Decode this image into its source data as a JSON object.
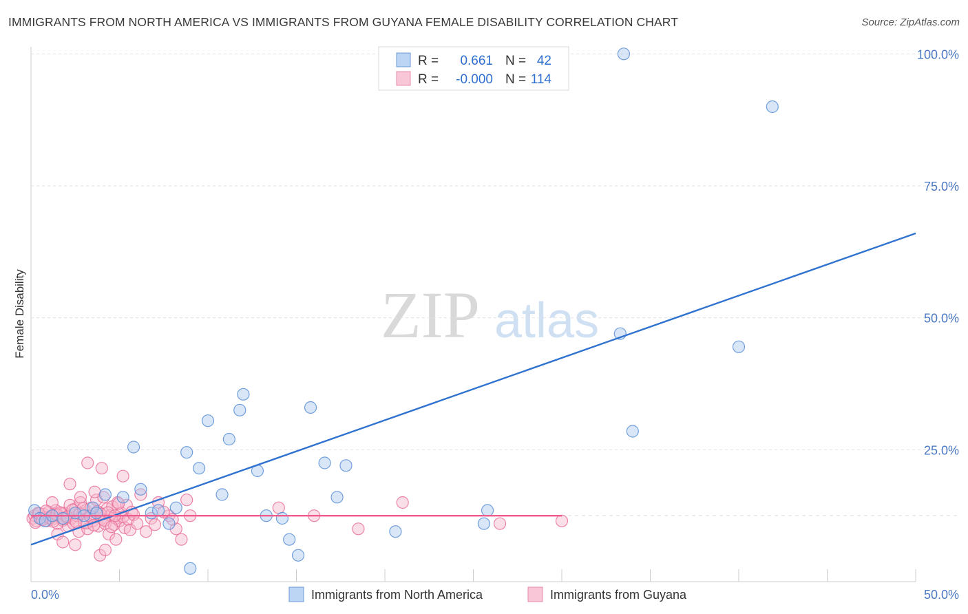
{
  "header": {
    "title": "IMMIGRANTS FROM NORTH AMERICA VS IMMIGRANTS FROM GUYANA FEMALE DISABILITY CORRELATION CHART",
    "source": "Source: ZipAtlas.com"
  },
  "watermark": {
    "zip": "ZIP",
    "atlas": "atlas"
  },
  "legend": {
    "r_label": "R =",
    "n_label": "N =",
    "blue_r": "0.661",
    "blue_n": "42",
    "pink_r": "-0.000",
    "pink_n": "114"
  },
  "colors": {
    "blue_fill": "#a9c8f0",
    "blue_stroke": "#5b8fd6",
    "blue_line": "#2f72d0",
    "pink_fill": "#f6b8cb",
    "pink_stroke": "#e8709a",
    "pink_line": "#ee5b8c",
    "tick_text": "#4a78c2"
  },
  "chart_data": {
    "type": "scatter",
    "title": "IMMIGRANTS FROM NORTH AMERICA VS IMMIGRANTS FROM GUYANA FEMALE DISABILITY CORRELATION CHART",
    "xlabel": "",
    "ylabel": "Female Disability",
    "xlim": [
      0,
      50
    ],
    "ylim": [
      0,
      105
    ],
    "x_tick_labels": [
      "0.0%",
      "50.0%"
    ],
    "y_ticks": [
      25,
      50,
      75,
      100
    ],
    "y_tick_labels": [
      "25.0%",
      "50.0%",
      "75.0%",
      "100.0%"
    ],
    "reference_line_y": 12.5,
    "series": [
      {
        "name": "Immigrants from North America",
        "color": "blue",
        "trend": {
          "x": [
            0,
            50
          ],
          "y": [
            7,
            66
          ]
        },
        "points": [
          [
            0.2,
            13.5
          ],
          [
            0.5,
            12
          ],
          [
            0.8,
            11.5
          ],
          [
            1.2,
            12.5
          ],
          [
            1.8,
            12
          ],
          [
            2.5,
            13
          ],
          [
            3.0,
            12.5
          ],
          [
            3.5,
            14
          ],
          [
            4.2,
            16.5
          ],
          [
            5.2,
            16
          ],
          [
            5.8,
            25.5
          ],
          [
            6.2,
            17.5
          ],
          [
            6.8,
            13
          ],
          [
            7.2,
            13.5
          ],
          [
            7.8,
            11
          ],
          [
            8.2,
            14
          ],
          [
            8.8,
            24.5
          ],
          [
            9.0,
            2.5
          ],
          [
            9.5,
            21.5
          ],
          [
            10.0,
            30.5
          ],
          [
            10.8,
            16.5
          ],
          [
            11.2,
            27
          ],
          [
            11.8,
            32.5
          ],
          [
            12.0,
            35.5
          ],
          [
            12.8,
            21
          ],
          [
            13.3,
            12.5
          ],
          [
            14.2,
            12
          ],
          [
            14.6,
            8
          ],
          [
            15.1,
            5
          ],
          [
            15.8,
            33
          ],
          [
            16.6,
            22.5
          ],
          [
            17.3,
            16
          ],
          [
            17.8,
            22
          ],
          [
            20.6,
            9.5
          ],
          [
            25.6,
            11
          ],
          [
            25.8,
            13.5
          ],
          [
            33.5,
            100
          ],
          [
            33.3,
            47
          ],
          [
            34.0,
            28.5
          ],
          [
            40.0,
            44.5
          ],
          [
            41.9,
            90
          ],
          [
            3.7,
            13
          ]
        ]
      },
      {
        "name": "Immigrants from Guyana",
        "color": "pink",
        "trend": {
          "x": [
            0,
            30
          ],
          "y": [
            12.5,
            12.5
          ]
        },
        "points": [
          [
            0.1,
            12
          ],
          [
            0.2,
            12.5
          ],
          [
            0.3,
            11.5
          ],
          [
            0.4,
            13
          ],
          [
            0.5,
            12
          ],
          [
            0.6,
            11.8
          ],
          [
            0.7,
            12.8
          ],
          [
            0.8,
            12.2
          ],
          [
            0.9,
            11.5
          ],
          [
            1.0,
            13.2
          ],
          [
            1.1,
            12
          ],
          [
            1.2,
            11.8
          ],
          [
            1.3,
            12.6
          ],
          [
            1.4,
            13.5
          ],
          [
            1.5,
            11
          ],
          [
            1.6,
            12.4
          ],
          [
            1.7,
            12.9
          ],
          [
            1.8,
            11.6
          ],
          [
            1.9,
            13
          ],
          [
            2.0,
            12.2
          ],
          [
            2.1,
            10.5
          ],
          [
            2.2,
            14.5
          ],
          [
            2.3,
            12
          ],
          [
            2.4,
            11
          ],
          [
            2.5,
            13.8
          ],
          [
            2.6,
            12.5
          ],
          [
            2.7,
            9.5
          ],
          [
            2.8,
            15
          ],
          [
            2.9,
            12.8
          ],
          [
            3.0,
            11.2
          ],
          [
            3.1,
            13.5
          ],
          [
            3.2,
            10
          ],
          [
            3.3,
            12.5
          ],
          [
            3.4,
            14
          ],
          [
            3.5,
            11.5
          ],
          [
            3.6,
            12.2
          ],
          [
            3.7,
            15.5
          ],
          [
            3.8,
            10.5
          ],
          [
            3.9,
            13
          ],
          [
            4.0,
            12
          ],
          [
            4.1,
            16
          ],
          [
            4.2,
            11
          ],
          [
            4.3,
            13.8
          ],
          [
            4.4,
            9
          ],
          [
            4.5,
            12.6
          ],
          [
            4.6,
            14.2
          ],
          [
            4.7,
            10.8
          ],
          [
            4.8,
            12
          ],
          [
            4.9,
            15
          ],
          [
            5.0,
            11.5
          ],
          [
            5.1,
            13
          ],
          [
            5.2,
            12.3
          ],
          [
            5.3,
            10.2
          ],
          [
            5.4,
            14.5
          ],
          [
            5.5,
            11.8
          ],
          [
            5.6,
            9.8
          ],
          [
            5.7,
            13.2
          ],
          [
            5.8,
            12.7
          ],
          [
            1.2,
            15
          ],
          [
            1.5,
            9
          ],
          [
            1.8,
            7.5
          ],
          [
            2.2,
            18.5
          ],
          [
            2.5,
            7
          ],
          [
            2.8,
            16
          ],
          [
            3.2,
            22.5
          ],
          [
            3.6,
            17
          ],
          [
            3.9,
            5
          ],
          [
            4.2,
            6
          ],
          [
            4.0,
            21.5
          ],
          [
            4.8,
            8
          ],
          [
            5.2,
            20
          ],
          [
            6.2,
            16.5
          ],
          [
            6.8,
            12
          ],
          [
            7.2,
            15
          ],
          [
            7.8,
            12.5
          ],
          [
            8.2,
            10
          ],
          [
            8.5,
            8
          ],
          [
            8.8,
            15.5
          ],
          [
            6.5,
            9.5
          ],
          [
            6.0,
            11
          ],
          [
            7.0,
            10.8
          ],
          [
            7.5,
            13.2
          ],
          [
            8.0,
            11.8
          ],
          [
            9.0,
            12.5
          ],
          [
            14.0,
            14
          ],
          [
            16.0,
            12.5
          ],
          [
            18.5,
            10
          ],
          [
            21.0,
            15
          ],
          [
            26.5,
            11
          ],
          [
            30.0,
            11.5
          ],
          [
            0.25,
            11.2
          ],
          [
            0.45,
            12.9
          ],
          [
            0.65,
            11.7
          ],
          [
            0.85,
            13.4
          ],
          [
            1.05,
            12.1
          ],
          [
            1.25,
            11.4
          ],
          [
            1.45,
            12.7
          ],
          [
            1.65,
            13.1
          ],
          [
            1.85,
            11.9
          ],
          [
            2.05,
            12.3
          ],
          [
            2.35,
            13.6
          ],
          [
            2.55,
            11.3
          ],
          [
            2.75,
            12.9
          ],
          [
            2.95,
            13.9
          ],
          [
            3.15,
            11.1
          ],
          [
            3.35,
            12.4
          ],
          [
            3.55,
            10.7
          ],
          [
            3.75,
            13.3
          ],
          [
            3.95,
            12.8
          ],
          [
            4.15,
            11.6
          ],
          [
            4.35,
            13.1
          ],
          [
            4.55,
            10.4
          ],
          [
            4.75,
            12.5
          ],
          [
            4.95,
            14.8
          ]
        ]
      }
    ]
  },
  "bottom_legend": {
    "blue": "Immigrants from North America",
    "pink": "Immigrants from Guyana"
  }
}
